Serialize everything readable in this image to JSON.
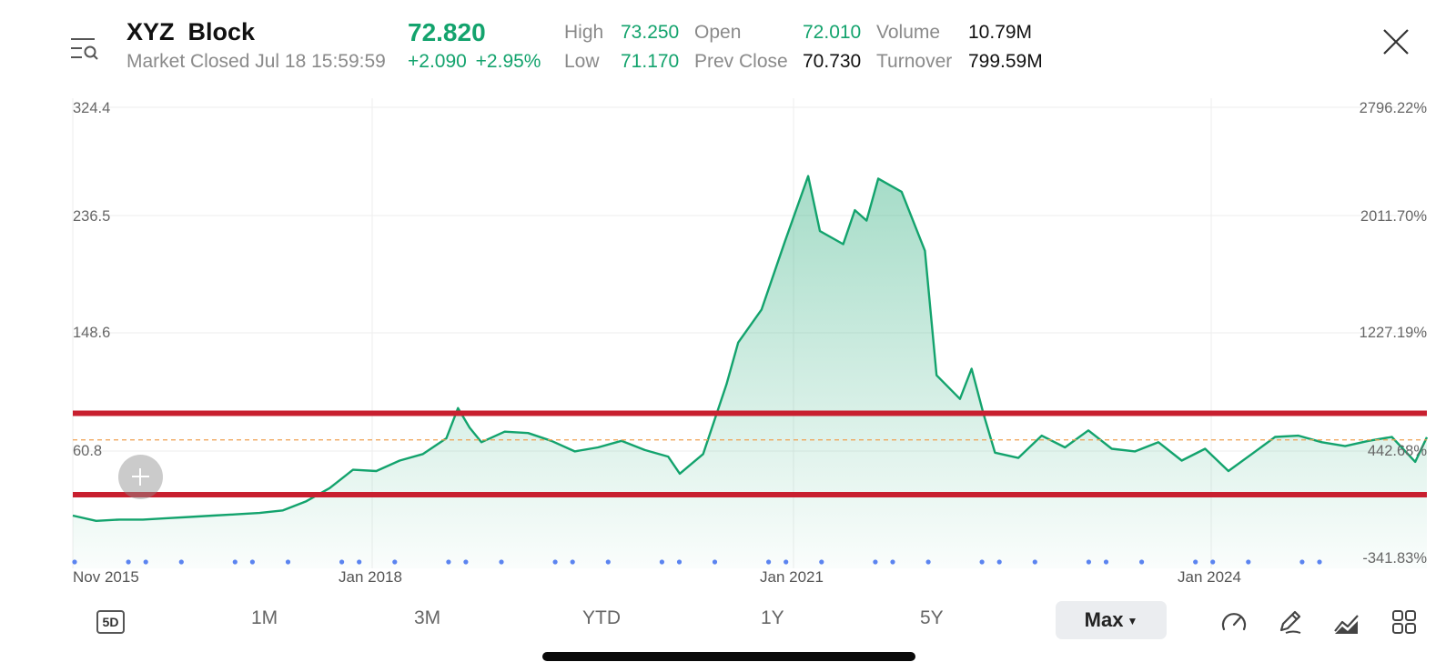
{
  "header": {
    "symbol": "XYZ",
    "name": "Block",
    "status": "Market Closed Jul 18 15:59:59",
    "price": "72.820",
    "change": "+2.090",
    "change_pct": "+2.95%",
    "close_icon": "close-icon",
    "menu_icon": "menu-search-icon"
  },
  "stats": {
    "high_label": "High",
    "high": "73.250",
    "low_label": "Low",
    "low": "71.170",
    "open_label": "Open",
    "open": "72.010",
    "prev_close_label": "Prev Close",
    "prev_close": "70.730",
    "volume_label": "Volume",
    "volume": "10.79M",
    "turnover_label": "Turnover",
    "turnover": "799.59M"
  },
  "chart_data": {
    "type": "area",
    "series": [
      {
        "x": [
          "2015-11",
          "2016-01",
          "2016-03",
          "2016-05",
          "2016-07",
          "2016-09",
          "2016-11",
          "2017-01",
          "2017-03",
          "2017-05",
          "2017-07",
          "2017-09",
          "2017-11",
          "2018-01",
          "2018-03",
          "2018-05",
          "2018-07",
          "2018-08",
          "2018-09",
          "2018-10",
          "2018-12",
          "2019-02",
          "2019-04",
          "2019-06",
          "2019-08",
          "2019-10",
          "2019-12",
          "2020-02",
          "2020-03",
          "2020-05",
          "2020-07",
          "2020-08",
          "2020-10",
          "2020-12",
          "2021-02",
          "2021-03",
          "2021-05",
          "2021-06",
          "2021-07",
          "2021-08",
          "2021-10",
          "2021-12",
          "2022-01",
          "2022-03",
          "2022-04",
          "2022-05",
          "2022-06",
          "2022-08",
          "2022-10",
          "2022-12",
          "2023-02",
          "2023-04",
          "2023-06",
          "2023-08",
          "2023-10",
          "2023-12",
          "2024-02",
          "2024-04",
          "2024-06",
          "2024-08",
          "2024-10",
          "2024-12",
          "2025-02",
          "2025-04",
          "2025-06",
          "2025-07"
        ],
        "values": [
          13,
          9,
          10,
          10,
          11,
          12,
          13,
          14,
          15,
          17,
          24,
          34,
          48,
          47,
          55,
          60,
          72,
          95,
          80,
          69,
          77,
          76,
          70,
          62,
          65,
          70,
          63,
          58,
          45,
          60,
          113,
          145,
          170,
          222,
          272,
          230,
          220,
          246,
          238,
          270,
          260,
          215,
          120,
          102,
          125,
          91,
          61,
          57,
          74,
          65,
          78,
          64,
          62,
          69,
          55,
          64,
          47,
          60,
          73,
          74,
          69,
          66,
          70,
          73,
          54,
          72.82
        ]
      }
    ],
    "x_tick_labels": [
      "Nov 2015",
      "Jan 2018",
      "Jan 2021",
      "Jan 2024"
    ],
    "y_tick_labels_left": [
      "324.4",
      "236.5",
      "148.6",
      "60.8"
    ],
    "y_tick_labels_right": [
      "2796.22%",
      "2011.70%",
      "1227.19%",
      "442.68%",
      "-341.83%"
    ],
    "ylim": [
      -27.2,
      324.4
    ],
    "ref_price_dashed": 70.73,
    "horizontal_lines": [
      {
        "value": 91,
        "color": "#c81f2f"
      },
      {
        "value": 29,
        "color": "#c81f2f"
      }
    ],
    "line_color": "#13a36d",
    "grid": true
  },
  "range_tabs": {
    "five_day": "5D",
    "one_month": "1M",
    "three_month": "3M",
    "ytd": "YTD",
    "one_year": "1Y",
    "five_year": "5Y",
    "max": "Max"
  },
  "tools": [
    "speedometer-icon",
    "pen-icon",
    "chart-type-icon",
    "grid-icon"
  ]
}
